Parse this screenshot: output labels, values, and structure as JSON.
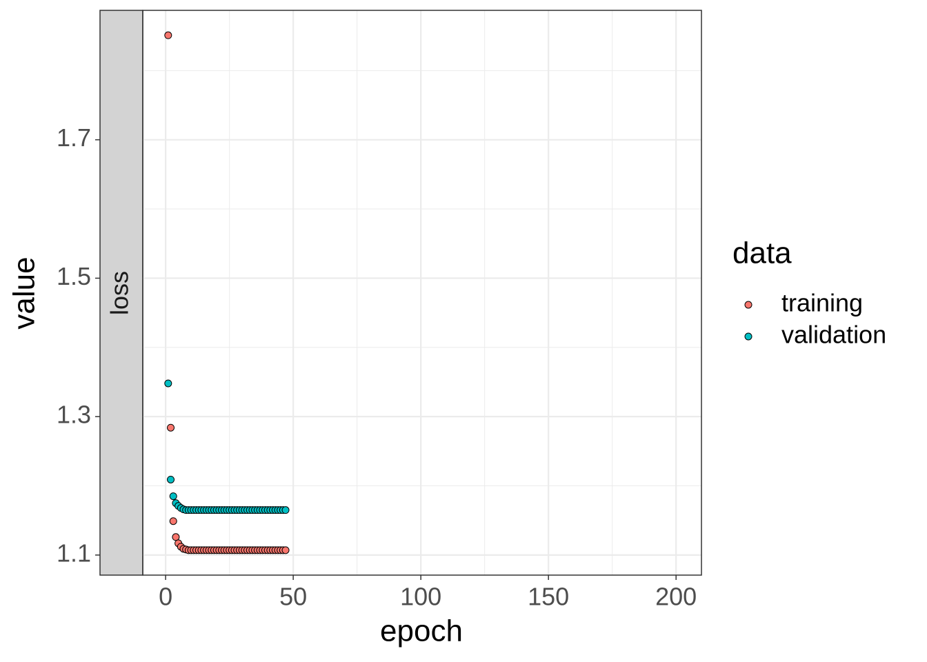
{
  "chart_data": {
    "type": "scatter",
    "facet": "loss",
    "xlabel": "epoch",
    "ylabel": "value",
    "legend_title": "data",
    "legend_position": "right",
    "grid": true,
    "x": [
      1,
      2,
      3,
      4,
      5,
      6,
      7,
      8,
      9,
      10,
      11,
      12,
      13,
      14,
      15,
      16,
      17,
      18,
      19,
      20,
      21,
      22,
      23,
      24,
      25,
      26,
      27,
      28,
      29,
      30,
      31,
      32,
      33,
      34,
      35,
      36,
      37,
      38,
      39,
      40,
      41,
      42,
      43,
      44,
      45,
      46,
      47
    ],
    "series": [
      {
        "name": "training",
        "color": "#F8766D",
        "values": [
          1.851,
          1.284,
          1.149,
          1.126,
          1.117,
          1.112,
          1.109,
          1.108,
          1.107,
          1.107,
          1.107,
          1.107,
          1.107,
          1.107,
          1.107,
          1.107,
          1.107,
          1.107,
          1.107,
          1.107,
          1.107,
          1.107,
          1.107,
          1.107,
          1.107,
          1.107,
          1.107,
          1.107,
          1.107,
          1.107,
          1.107,
          1.107,
          1.107,
          1.107,
          1.107,
          1.107,
          1.107,
          1.107,
          1.107,
          1.107,
          1.107,
          1.107,
          1.107,
          1.107,
          1.107,
          1.107,
          1.107
        ]
      },
      {
        "name": "validation",
        "color": "#00BFC4",
        "values": [
          1.348,
          1.209,
          1.185,
          1.175,
          1.171,
          1.168,
          1.166,
          1.165,
          1.165,
          1.165,
          1.165,
          1.165,
          1.165,
          1.165,
          1.165,
          1.165,
          1.165,
          1.165,
          1.165,
          1.165,
          1.165,
          1.165,
          1.165,
          1.165,
          1.165,
          1.165,
          1.165,
          1.165,
          1.165,
          1.165,
          1.165,
          1.165,
          1.165,
          1.165,
          1.165,
          1.165,
          1.165,
          1.165,
          1.165,
          1.165,
          1.165,
          1.165,
          1.165,
          1.165,
          1.165,
          1.165,
          1.165
        ]
      }
    ],
    "xlim": [
      -8.95,
      209.95
    ],
    "ylim": [
      1.071,
      1.887
    ],
    "xticks": [
      0,
      50,
      100,
      150,
      200
    ],
    "yticks": [
      1.1,
      1.3,
      1.5,
      1.7
    ],
    "x_minor_ticks": [
      25,
      75,
      125,
      175
    ],
    "y_minor_ticks": [
      1.2,
      1.4,
      1.6,
      1.8
    ]
  }
}
